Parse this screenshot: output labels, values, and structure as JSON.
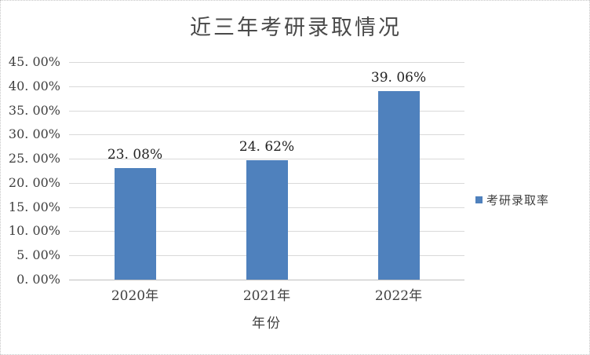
{
  "window": {
    "background": "#ffffff",
    "border_color": "#c6c6c6"
  },
  "chart_data": {
    "type": "bar",
    "title": "近三年考研录取情况",
    "categories": [
      "2020年",
      "2021年",
      "2022年"
    ],
    "series": [
      {
        "name": "考研录取率",
        "values": [
          23.08,
          24.62,
          39.06
        ]
      }
    ],
    "data_labels": [
      "23. 08%",
      "24. 62%",
      "39. 06%"
    ],
    "xlabel": "年份",
    "ylabel": "",
    "ylim": [
      0,
      45
    ],
    "y_tick_step": 5,
    "y_tick_labels": [
      "0. 00%",
      "5. 00%",
      "10. 00%",
      "15. 00%",
      "20. 00%",
      "25. 00%",
      "30. 00%",
      "35. 00%",
      "40. 00%",
      "45. 00%"
    ],
    "grid": true,
    "legend_position": "right",
    "legend": [
      "考研录取率"
    ],
    "colors": {
      "bar": "#4f81bd",
      "gridline": "#d9d9d9",
      "axis_line": "#bfbfbf",
      "title_text": "#494949",
      "tick_text": "#3f3f3f",
      "label_text": "#222222"
    }
  }
}
